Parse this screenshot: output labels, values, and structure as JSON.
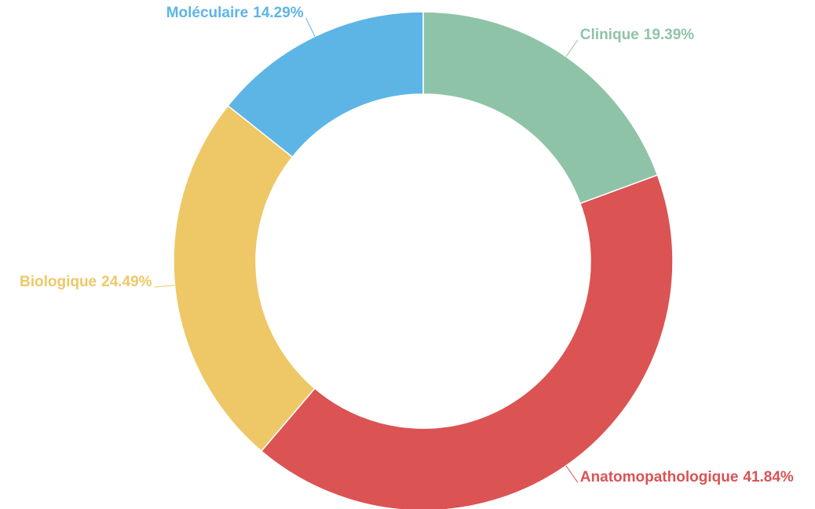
{
  "chart_data": {
    "type": "donut",
    "categories": [
      "Clinique",
      "Anatomopathologique",
      "Biologique",
      "Moléculaire"
    ],
    "values": [
      19.39,
      41.84,
      24.49,
      14.29
    ],
    "value_labels": [
      "19.39%",
      "41.84%",
      "24.49%",
      "14.29%"
    ],
    "colors": [
      "#8fc3a7",
      "#db5353",
      "#eec866",
      "#5db5e5"
    ]
  }
}
